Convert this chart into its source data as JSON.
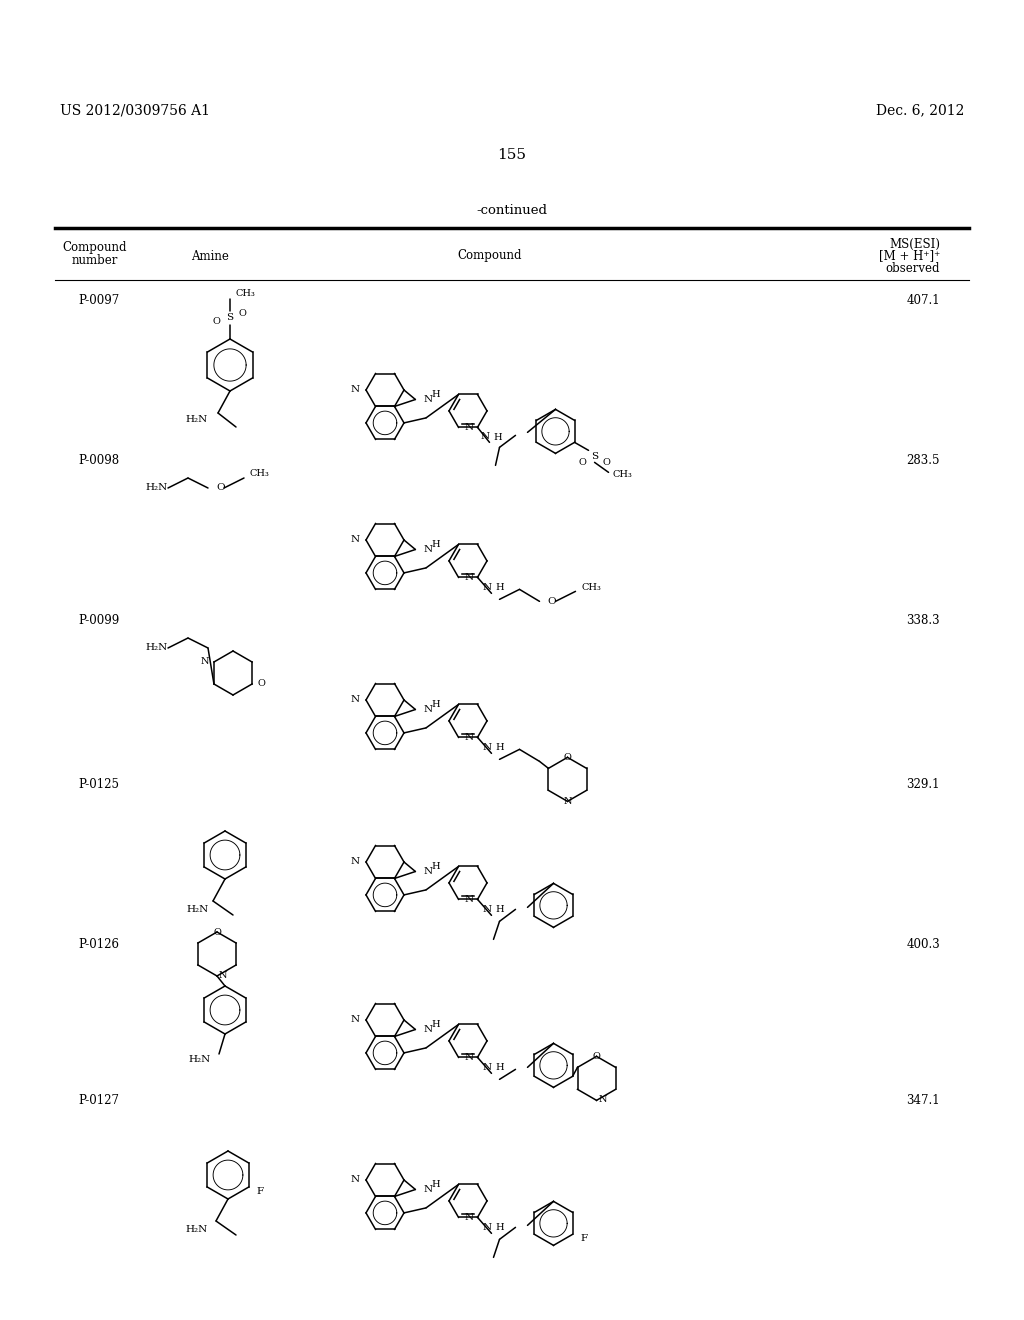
{
  "left_header": "US 2012/0309756 A1",
  "right_header": "Dec. 6, 2012",
  "page_number": "155",
  "continued": "-continued",
  "col1": "Compound\nnumber",
  "col2": "Amine",
  "col3": "Compound",
  "col4_l1": "MS(ESI)",
  "col4_l2": "[M + H⁺]⁺",
  "col4_l3": "observed",
  "rows": [
    {
      "id": "P-0097",
      "ms": "407.1"
    },
    {
      "id": "P-0098",
      "ms": "283.5"
    },
    {
      "id": "P-0099",
      "ms": "338.3"
    },
    {
      "id": "P-0125",
      "ms": "329.1"
    },
    {
      "id": "P-0126",
      "ms": "400.3"
    },
    {
      "id": "P-0127",
      "ms": "347.1"
    }
  ],
  "bg": "#ffffff"
}
